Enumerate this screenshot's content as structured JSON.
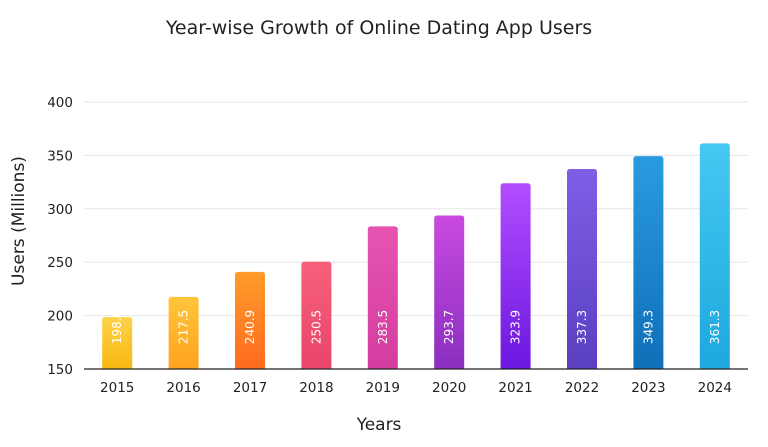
{
  "chart_data": {
    "type": "bar",
    "title": "Year-wise Growth of Online Dating App Users",
    "xlabel": "Years",
    "ylabel": "Users (Millions)",
    "categories": [
      "2015",
      "2016",
      "2017",
      "2018",
      "2019",
      "2020",
      "2021",
      "2022",
      "2023",
      "2024"
    ],
    "values": [
      198.6,
      217.5,
      240.9,
      250.5,
      283.5,
      293.7,
      323.9,
      337.3,
      349.3,
      361.3
    ],
    "data_labels": [
      "198.6",
      "217.5",
      "240.9",
      "250.5",
      "283.5",
      "293.7",
      "323.9",
      "337.3",
      "349.3",
      "361.3"
    ],
    "ylim": [
      150,
      400
    ],
    "yticks": [
      150,
      200,
      250,
      300,
      350,
      400
    ],
    "ytick_labels": [
      "150",
      "200",
      "250",
      "300",
      "350",
      "400"
    ],
    "grid": true,
    "legend": false,
    "bar_gradients": [
      [
        "#ffd24a",
        "#f7b70f"
      ],
      [
        "#ffc53a",
        "#ffa21f"
      ],
      [
        "#ff9c2a",
        "#ff6a1f"
      ],
      [
        "#f7607a",
        "#e8456b"
      ],
      [
        "#e654b0",
        "#d43da0"
      ],
      [
        "#c94ae0",
        "#8a2fc0"
      ],
      [
        "#b24dff",
        "#6b18e0"
      ],
      [
        "#7e5fe6",
        "#5a3fc0"
      ],
      [
        "#2a9be0",
        "#0f6fb8"
      ],
      [
        "#45c8f2",
        "#1ea8de"
      ]
    ]
  }
}
